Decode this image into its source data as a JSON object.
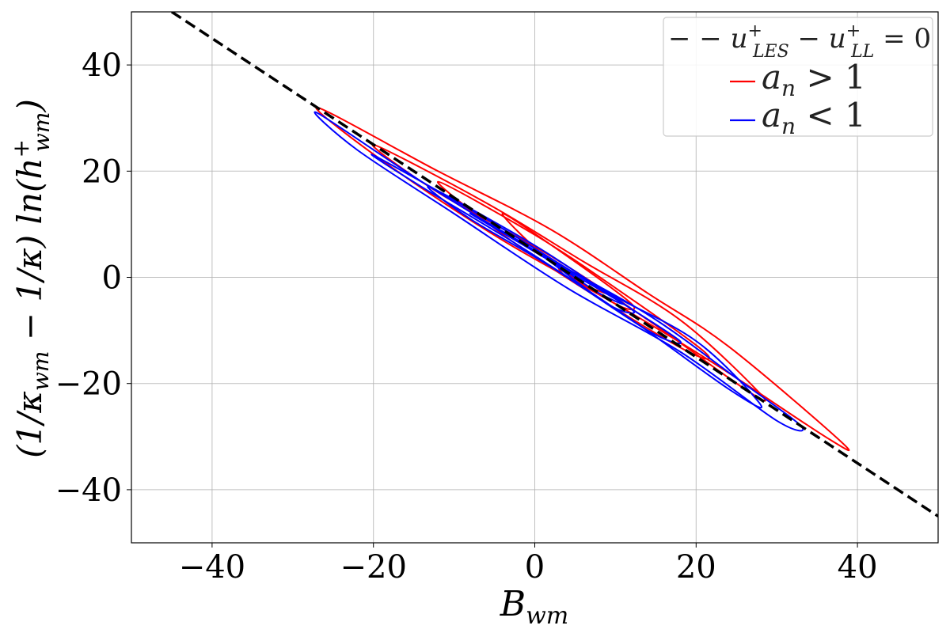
{
  "chart_data": {
    "type": "line",
    "xlabel": "B_wm",
    "ylabel": "(1/κ_wm − 1/κ) ln(h⁺_wm)",
    "xlim": [
      -50,
      50
    ],
    "ylim": [
      -50,
      50
    ],
    "xticks": [
      -40,
      -20,
      0,
      20,
      40
    ],
    "yticks": [
      -40,
      -20,
      0,
      20,
      40
    ],
    "xtick_labels": [
      "−40",
      "−20",
      "0",
      "20",
      "40"
    ],
    "ytick_labels": [
      "−40",
      "−20",
      "0",
      "20",
      "40"
    ],
    "grid": true,
    "legend_position": "top-right",
    "reference_line": {
      "name": "− − u⁺_LES − u⁺_LL = 0",
      "color": "#000000",
      "style": "dashed",
      "x": [
        -45,
        50
      ],
      "y": [
        50,
        -45
      ]
    },
    "series": [
      {
        "name": "a_n > 1",
        "color": "#ff0000",
        "contours": [
          [
            [
              -27,
              32
            ],
            [
              -12,
              20
            ],
            [
              2,
              9
            ],
            [
              14,
              -3
            ],
            [
              24,
              -13
            ],
            [
              38,
              -31
            ],
            [
              36,
              -30
            ],
            [
              22,
              -16
            ],
            [
              10,
              -5
            ],
            [
              -4,
              7
            ],
            [
              -18,
              21
            ],
            [
              -27,
              32
            ]
          ],
          [
            [
              -20,
              25
            ],
            [
              -6,
              14
            ],
            [
              6,
              3
            ],
            [
              18,
              -8
            ],
            [
              28,
              -22
            ],
            [
              26,
              -21
            ],
            [
              14,
              -8
            ],
            [
              2,
              4
            ],
            [
              -12,
              16
            ],
            [
              -20,
              25
            ]
          ],
          [
            [
              -12,
              18
            ],
            [
              0,
              8
            ],
            [
              10,
              -2
            ],
            [
              21,
              -14
            ],
            [
              19,
              -14
            ],
            [
              8,
              -4
            ],
            [
              -3,
              7
            ],
            [
              -12,
              18
            ]
          ],
          [
            [
              -4,
              12
            ],
            [
              4,
              4
            ],
            [
              12,
              -5
            ],
            [
              10,
              -5
            ],
            [
              2,
              3
            ],
            [
              -4,
              12
            ]
          ],
          [
            [
              3,
              2
            ],
            [
              6,
              0
            ],
            [
              9,
              -3
            ],
            [
              7,
              -2
            ],
            [
              4,
              0
            ],
            [
              3,
              2
            ]
          ]
        ]
      },
      {
        "name": "a_n < 1",
        "color": "#0000ff",
        "contours": [
          [
            [
              -27,
              31
            ],
            [
              -14,
              18
            ],
            [
              0,
              5
            ],
            [
              14,
              -7
            ],
            [
              25,
              -19
            ],
            [
              33,
              -28
            ],
            [
              30,
              -27
            ],
            [
              18,
              -14
            ],
            [
              4,
              -2
            ],
            [
              -10,
              12
            ],
            [
              -22,
              24
            ],
            [
              -27,
              31
            ]
          ],
          [
            [
              -20,
              23
            ],
            [
              -6,
              11
            ],
            [
              8,
              -2
            ],
            [
              20,
              -12
            ],
            [
              28,
              -24
            ],
            [
              24,
              -21
            ],
            [
              12,
              -8
            ],
            [
              -2,
              6
            ],
            [
              -14,
              17
            ],
            [
              -20,
              23
            ]
          ],
          [
            [
              -13,
              17
            ],
            [
              0,
              6
            ],
            [
              10,
              -4
            ],
            [
              18,
              -12
            ],
            [
              14,
              -10
            ],
            [
              2,
              2
            ],
            [
              -8,
              11
            ],
            [
              -13,
              17
            ]
          ],
          [
            [
              -8,
              12
            ],
            [
              2,
              3
            ],
            [
              12,
              -6
            ],
            [
              9,
              -5
            ],
            [
              0,
              5
            ],
            [
              -8,
              12
            ]
          ],
          [
            [
              2,
              3
            ],
            [
              7,
              -1
            ],
            [
              11,
              -5
            ],
            [
              8,
              -3
            ],
            [
              4,
              1
            ],
            [
              2,
              3
            ]
          ]
        ]
      }
    ]
  }
}
